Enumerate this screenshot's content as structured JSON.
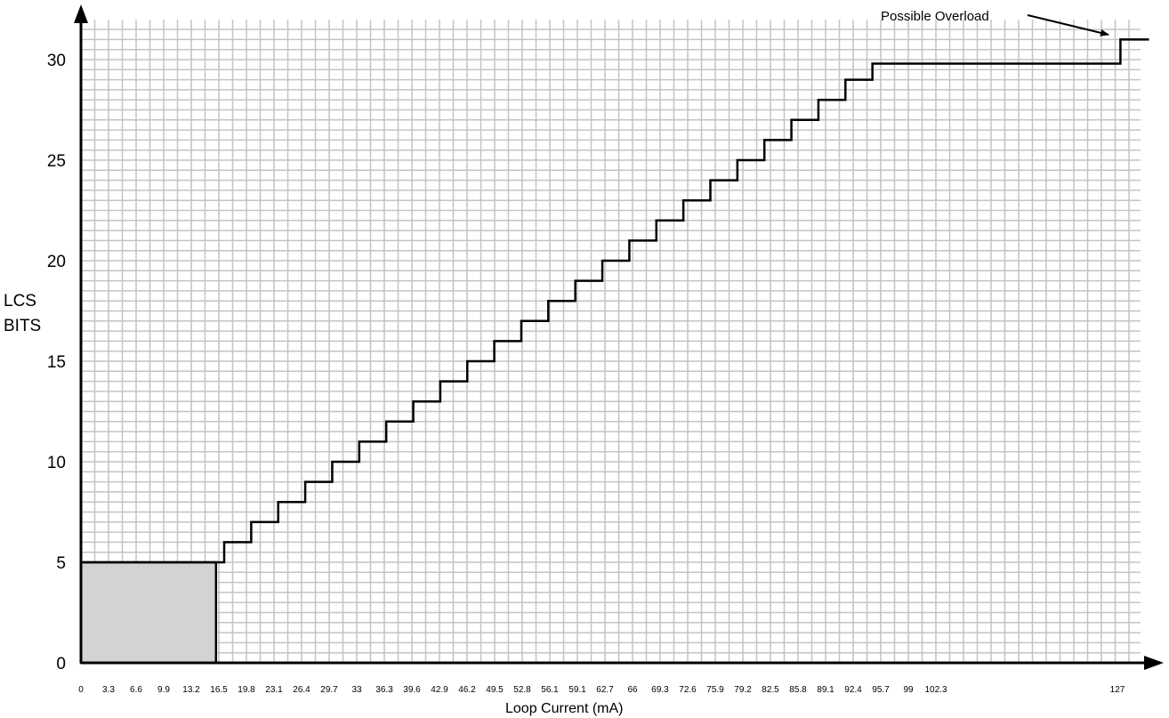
{
  "chart_data": {
    "type": "line",
    "step": true,
    "title": "",
    "xlabel": "Loop Current (mA)",
    "ylabel_lines": [
      "LCS",
      "BITS"
    ],
    "ylim": [
      0,
      31.5
    ],
    "y_ticks": [
      0,
      5,
      10,
      15,
      20,
      25,
      30
    ],
    "x_tick_labels": [
      "0",
      "3.3",
      "6.6",
      "9.9",
      "13.2",
      "16.5",
      "19.8",
      "23.1",
      "26.4",
      "29.7",
      "33",
      "36.3",
      "39.6",
      "42.9",
      "46.2",
      "49.5",
      "52.8",
      "56.1",
      "59.1",
      "62.7",
      "66",
      "69.3",
      "72.6",
      "75.9",
      "79.2",
      "82.5",
      "85.8",
      "89.1",
      "92.4",
      "95.7",
      "99",
      "102.3",
      "127"
    ],
    "grid": true,
    "series": [
      {
        "x": [
          0,
          16.5,
          17.5,
          20.8,
          24.1,
          27.4,
          30.7,
          34,
          37.3,
          40.6,
          43.9,
          47.2,
          50.5,
          53.8,
          57.1,
          60.4,
          63.7,
          67,
          70.3,
          73.6,
          76.9,
          80.2,
          83.5,
          86.8,
          90.1,
          93.4,
          96.7,
          127,
          130.5
        ],
        "y": [
          5,
          5,
          6,
          7,
          8,
          9,
          10,
          11,
          12,
          13,
          14,
          15,
          16,
          17,
          18,
          19,
          20,
          21,
          22,
          23,
          24,
          25,
          26,
          27,
          28,
          29,
          29.8,
          31,
          31
        ]
      }
    ],
    "shaded_region": {
      "x": [
        0,
        16.5
      ],
      "y": [
        0,
        5
      ],
      "color": "#d3d3d3"
    },
    "annotations": [
      {
        "text": "Possible Overload",
        "x": 127,
        "y": 31
      }
    ]
  }
}
